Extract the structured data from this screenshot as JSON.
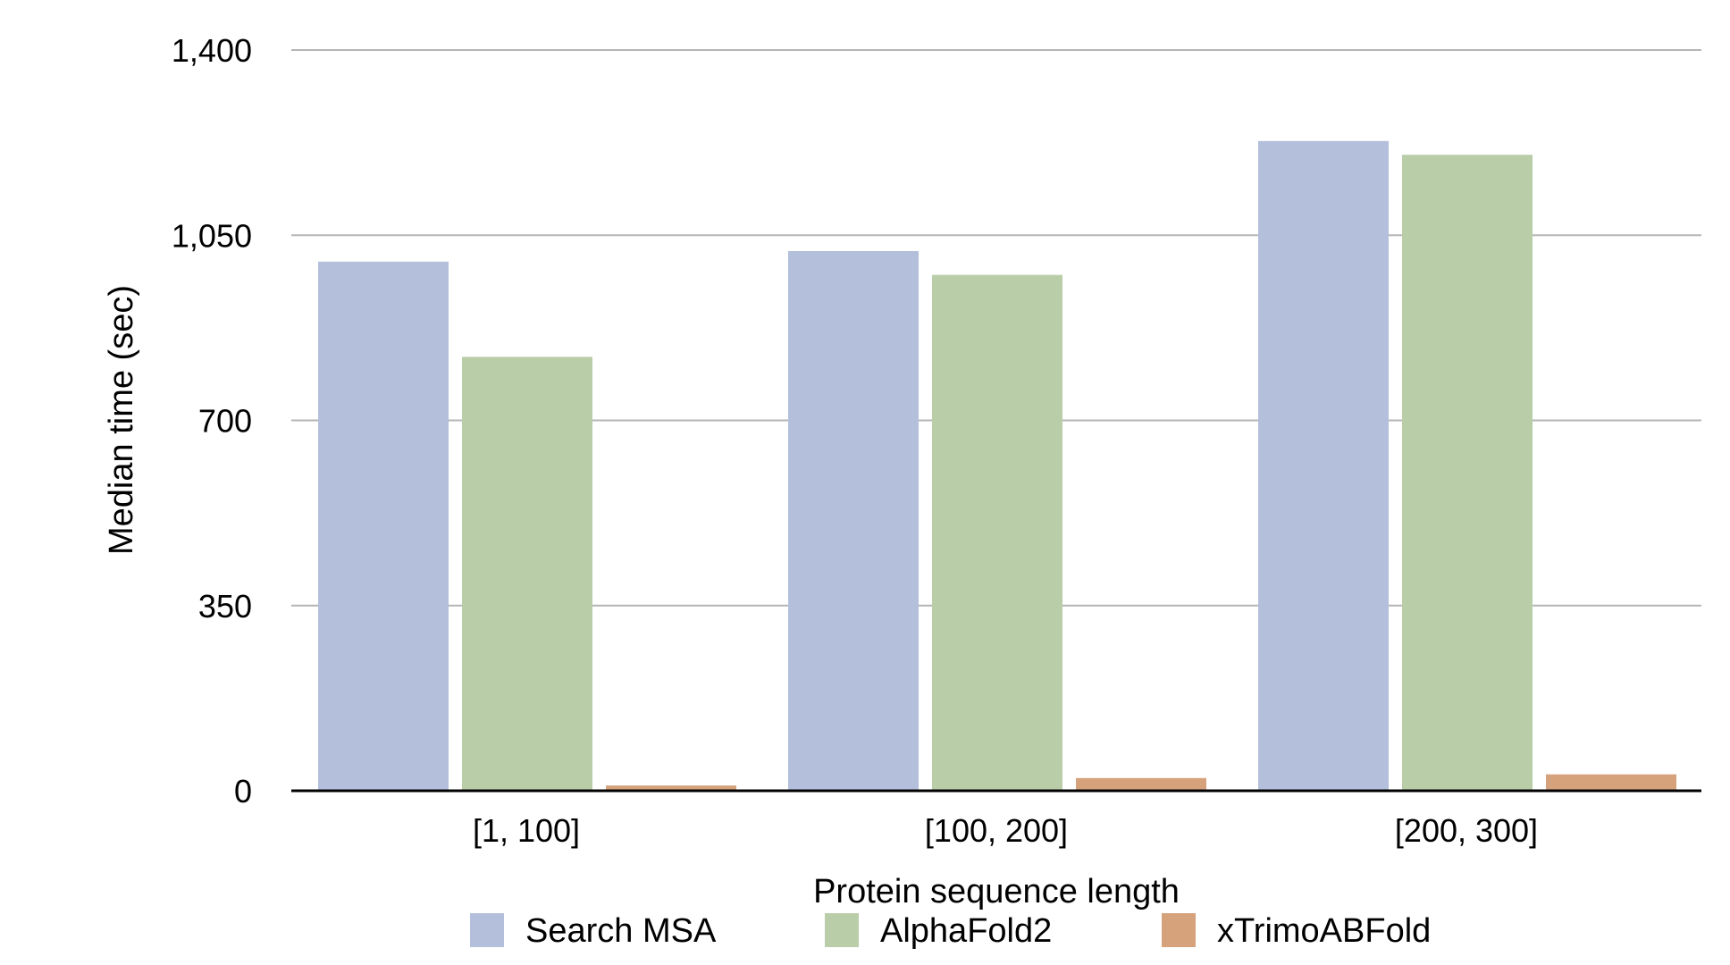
{
  "chart_data": {
    "type": "bar",
    "title": "",
    "xlabel": "Protein sequence length",
    "ylabel": "Median time (sec)",
    "categories": [
      "[1, 100]",
      "[100, 200]",
      "[200, 300]"
    ],
    "ylim": [
      0,
      1400
    ],
    "yticks": [
      0,
      350,
      700,
      1050,
      1400
    ],
    "ytick_labels": [
      "0",
      "350",
      "700",
      "1,050",
      "1,400"
    ],
    "grid": true,
    "legend_position": "bottom",
    "series": [
      {
        "name": "Search MSA",
        "color": "#b3bfdb",
        "values": [
          1000,
          1020,
          1228
        ]
      },
      {
        "name": "AlphaFold2",
        "color": "#b8cda8",
        "values": [
          820,
          975,
          1202
        ]
      },
      {
        "name": "xTrimoABFold",
        "color": "#d5a27c",
        "values": [
          10,
          24,
          31
        ]
      }
    ]
  }
}
